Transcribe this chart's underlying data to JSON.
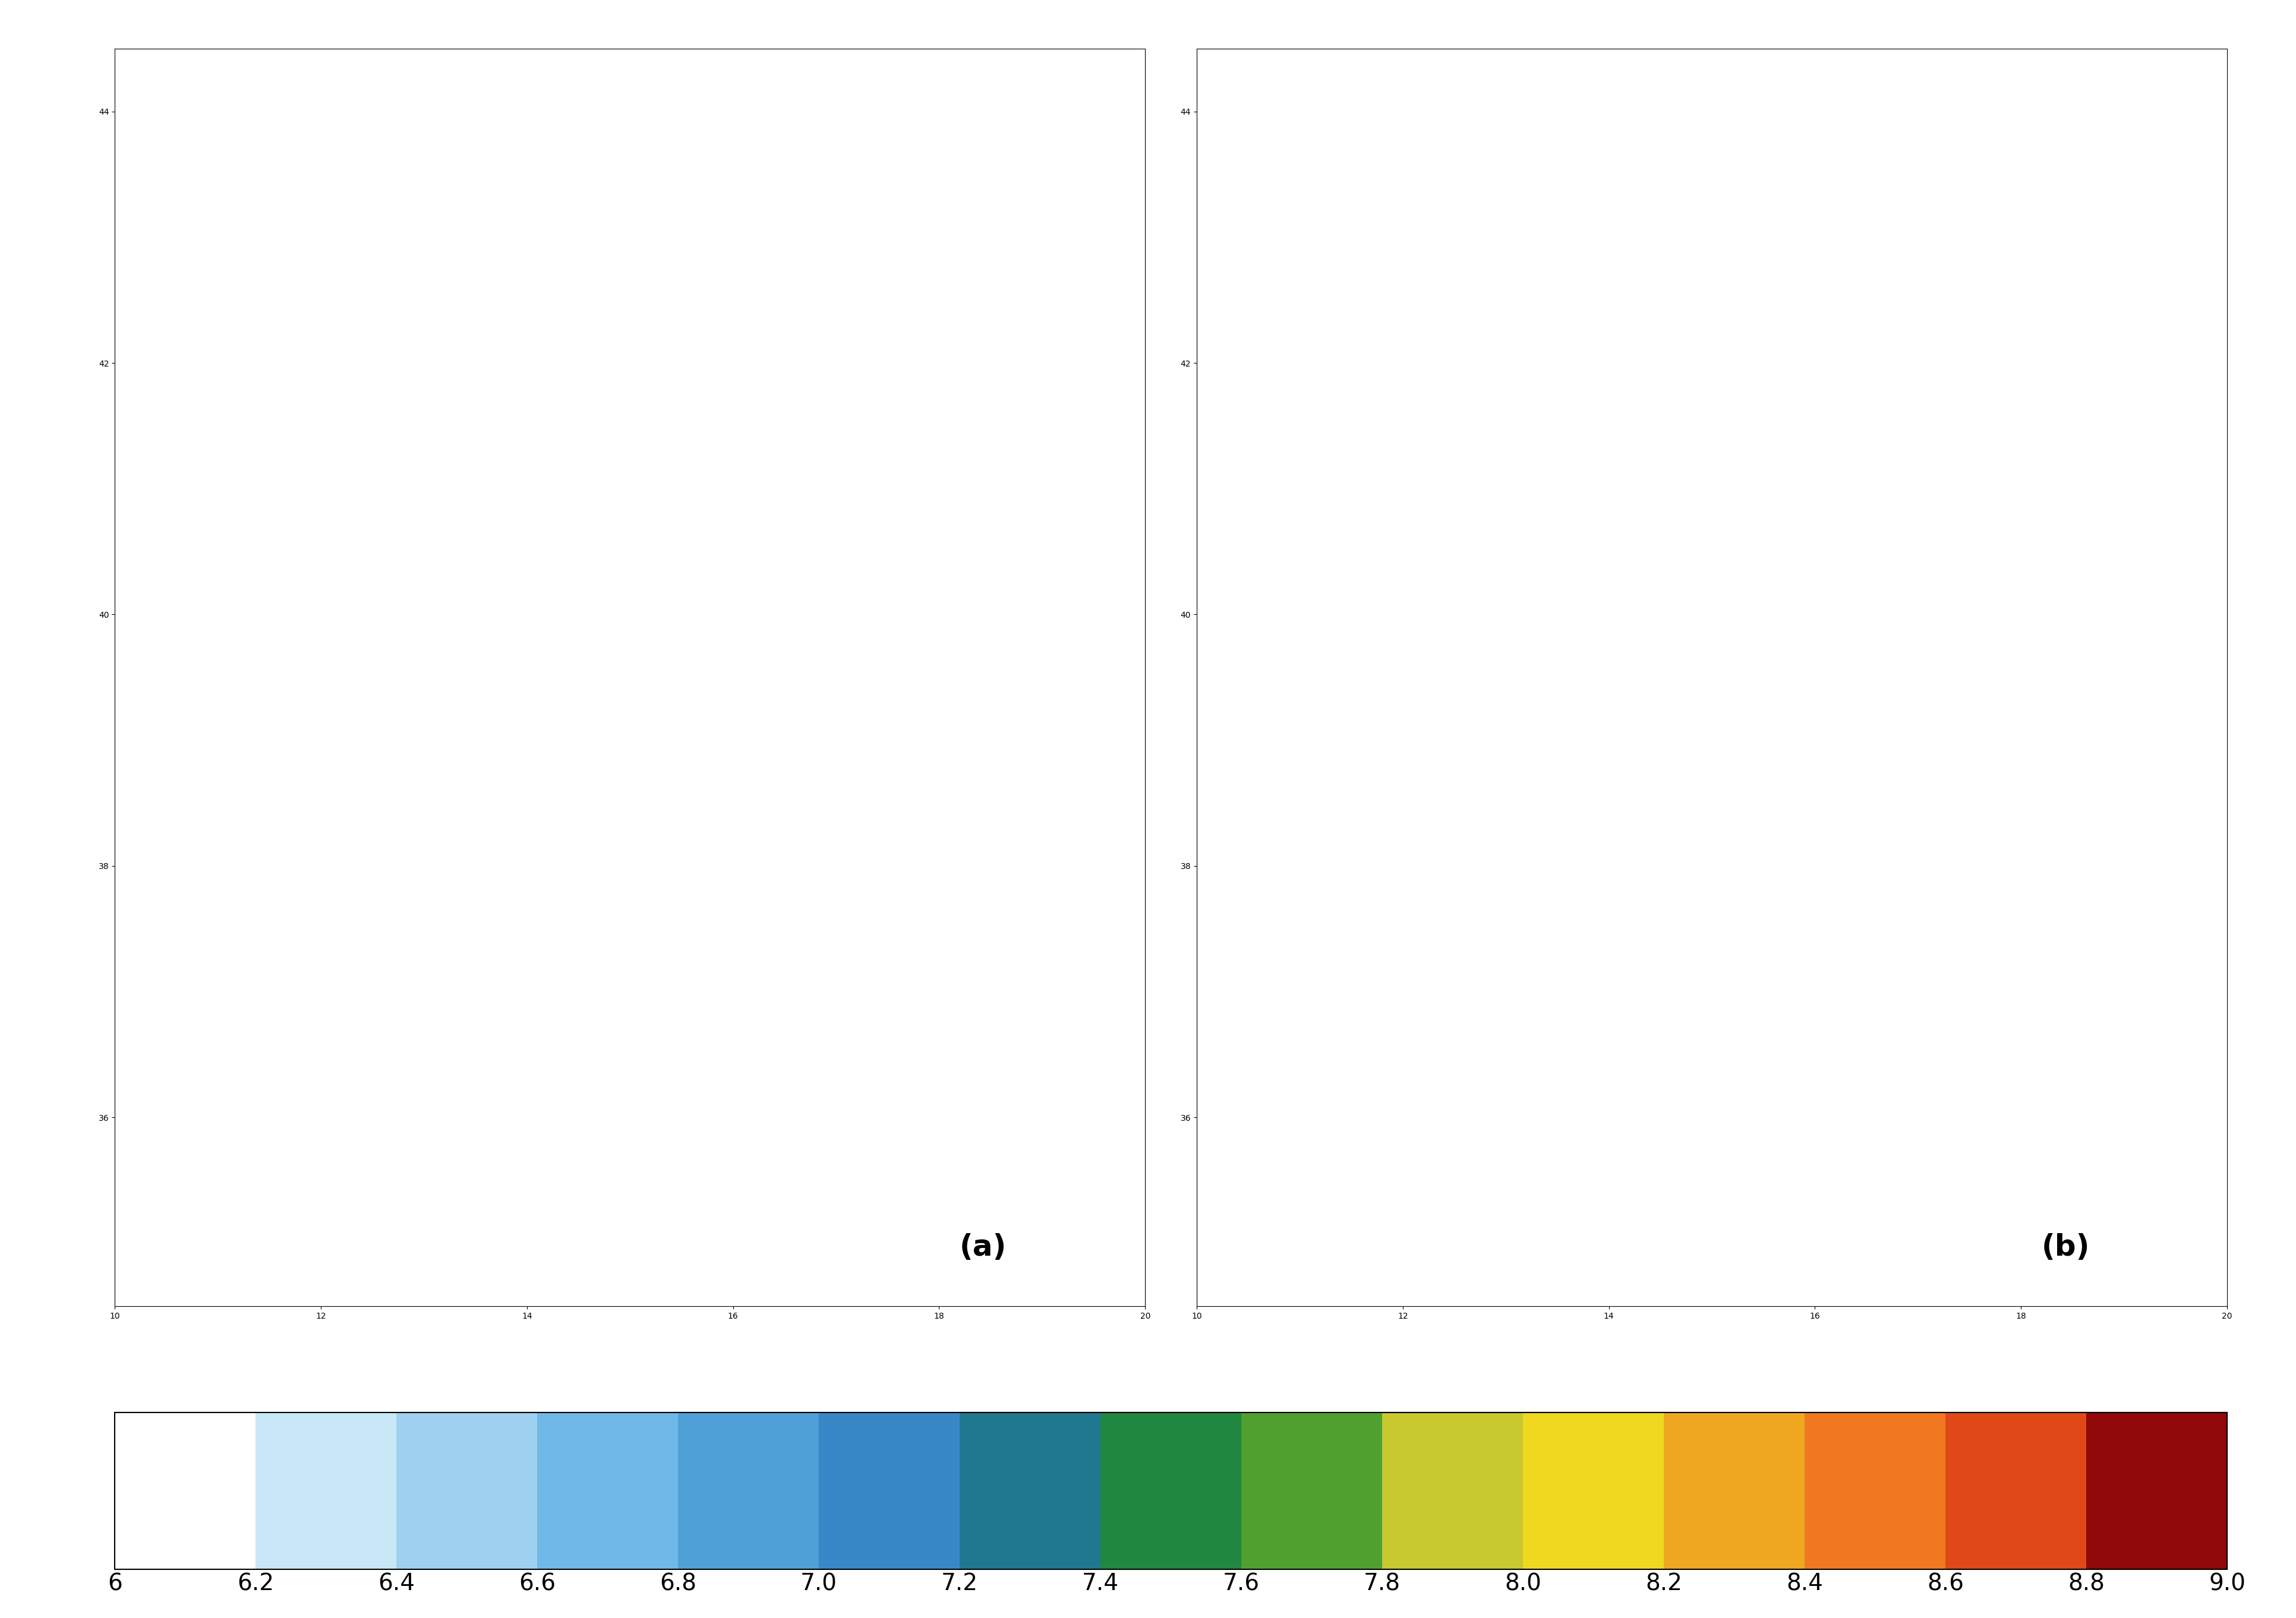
{
  "lon_min": 10.0,
  "lon_max": 20.0,
  "lat_min": 34.5,
  "lat_max": 44.5,
  "lon_ticks": [
    10,
    12,
    14,
    16,
    18,
    20
  ],
  "lat_ticks": [
    36,
    38,
    40,
    42,
    44
  ],
  "colorbar_levels": [
    6,
    6.2,
    6.4,
    6.6,
    6.8,
    7.0,
    7.2,
    7.4,
    7.6,
    7.8,
    8.0,
    8.2,
    8.4,
    8.6,
    8.8,
    9.0
  ],
  "colorbar_colors": [
    "#ffffff",
    "#c8e8f8",
    "#a0d0f0",
    "#70b8e8",
    "#50a0d8",
    "#3888c8",
    "#207890",
    "#208840",
    "#50a030",
    "#c8c830",
    "#f0d820",
    "#f0a820",
    "#f07820",
    "#e04818",
    "#c02010",
    "#900808"
  ],
  "panel_a_label": "(a)",
  "panel_b_label": "(b)",
  "background_color": "#ffffff",
  "land_color": "#f5f5f5",
  "ocean_color": "#ffffff",
  "coastline_color": "#000000",
  "border_color": "#000000"
}
